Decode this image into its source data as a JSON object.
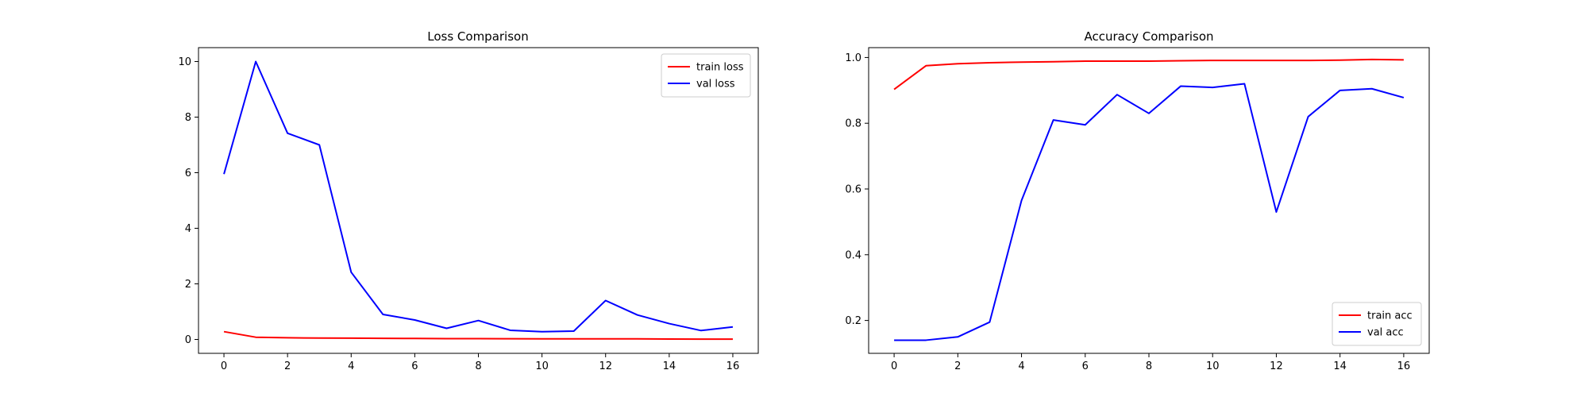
{
  "chart_data": [
    {
      "type": "line",
      "title": "Loss Comparison",
      "xlabel": "",
      "ylabel": "",
      "x": [
        0,
        1,
        2,
        3,
        4,
        5,
        6,
        7,
        8,
        9,
        10,
        11,
        12,
        13,
        14,
        15,
        16
      ],
      "xlim": [
        -0.8,
        16.8
      ],
      "ylim": [
        -0.5,
        10.5
      ],
      "xticks": [
        0,
        2,
        4,
        6,
        8,
        10,
        12,
        14,
        16
      ],
      "yticks": [
        0,
        2,
        4,
        6,
        8,
        10
      ],
      "legend": "top-right",
      "grid": false,
      "series": [
        {
          "name": "train loss",
          "color": "#ff0000",
          "values": [
            0.28,
            0.08,
            0.06,
            0.05,
            0.045,
            0.04,
            0.035,
            0.03,
            0.03,
            0.025,
            0.02,
            0.02,
            0.02,
            0.02,
            0.015,
            0.01,
            0.01
          ]
        },
        {
          "name": "val loss",
          "color": "#0000ff",
          "values": [
            5.95,
            10.0,
            7.42,
            7.0,
            2.42,
            0.9,
            0.7,
            0.4,
            0.68,
            0.33,
            0.28,
            0.3,
            1.4,
            0.88,
            0.57,
            0.32,
            0.45
          ]
        }
      ]
    },
    {
      "type": "line",
      "title": "Accuracy Comparison",
      "xlabel": "",
      "ylabel": "",
      "x": [
        0,
        1,
        2,
        3,
        4,
        5,
        6,
        7,
        8,
        9,
        10,
        11,
        12,
        13,
        14,
        15,
        16
      ],
      "xlim": [
        -0.8,
        16.8
      ],
      "ylim": [
        0.1,
        1.03
      ],
      "xticks": [
        0,
        2,
        4,
        6,
        8,
        10,
        12,
        14,
        16
      ],
      "yticks": [
        0.2,
        0.4,
        0.6,
        0.8,
        1.0
      ],
      "ytick_labels": [
        "0.2",
        "0.4",
        "0.6",
        "0.8",
        "1.0"
      ],
      "legend": "bottom-right",
      "grid": false,
      "series": [
        {
          "name": "train acc",
          "color": "#ff0000",
          "values": [
            0.903,
            0.975,
            0.981,
            0.984,
            0.986,
            0.987,
            0.989,
            0.989,
            0.989,
            0.99,
            0.991,
            0.991,
            0.991,
            0.991,
            0.992,
            0.994,
            0.993
          ]
        },
        {
          "name": "val acc",
          "color": "#0000ff",
          "values": [
            0.14,
            0.14,
            0.15,
            0.195,
            0.565,
            0.81,
            0.795,
            0.887,
            0.83,
            0.913,
            0.909,
            0.92,
            0.53,
            0.82,
            0.9,
            0.905,
            0.878
          ]
        }
      ]
    }
  ]
}
